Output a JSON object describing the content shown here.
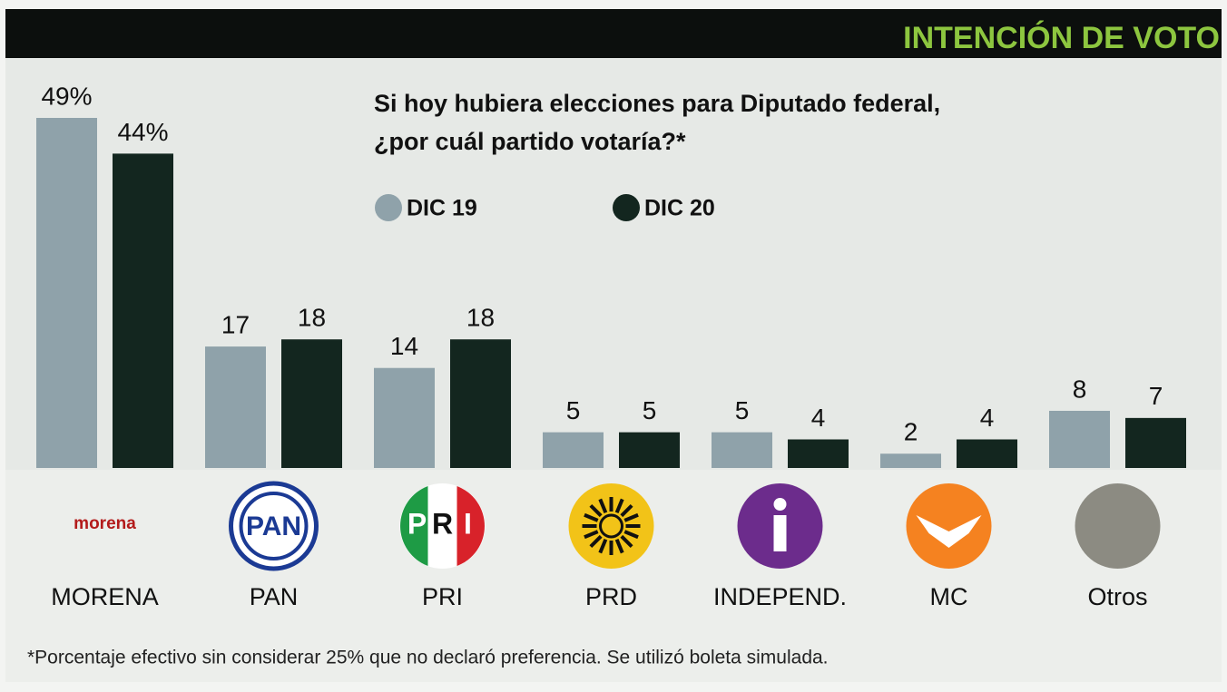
{
  "chart_data": {
    "type": "bar",
    "header": "INTENCIÓN DE VOTO",
    "title": [
      "Si hoy hubiera elecciones para Diputado federal,",
      "¿por cuál partido votaría?*"
    ],
    "categories": [
      "MORENA",
      "PAN",
      "PRI",
      "PRD",
      "INDEPEND.",
      "MC",
      "Otros"
    ],
    "series": [
      {
        "name": "DIC 19",
        "color": "#8fa2aa",
        "values": [
          49,
          17,
          14,
          5,
          5,
          2,
          8
        ],
        "value_labels": [
          "49%",
          "17",
          "14",
          "5",
          "5",
          "2",
          "8"
        ]
      },
      {
        "name": "DIC 20",
        "color": "#13261f",
        "values": [
          44,
          18,
          18,
          5,
          4,
          4,
          7
        ],
        "value_labels": [
          "44%",
          "18",
          "18",
          "5",
          "4",
          "4",
          "7"
        ]
      }
    ],
    "logo_texts": {
      "morena": "morena",
      "pan": "PAN",
      "pri": [
        "P",
        "R",
        "I"
      ]
    },
    "footnote": "*Porcentaje efectivo sin considerar 25% que no declaró preferencia. Se utilizó boleta simulada.",
    "legend": "top"
  }
}
